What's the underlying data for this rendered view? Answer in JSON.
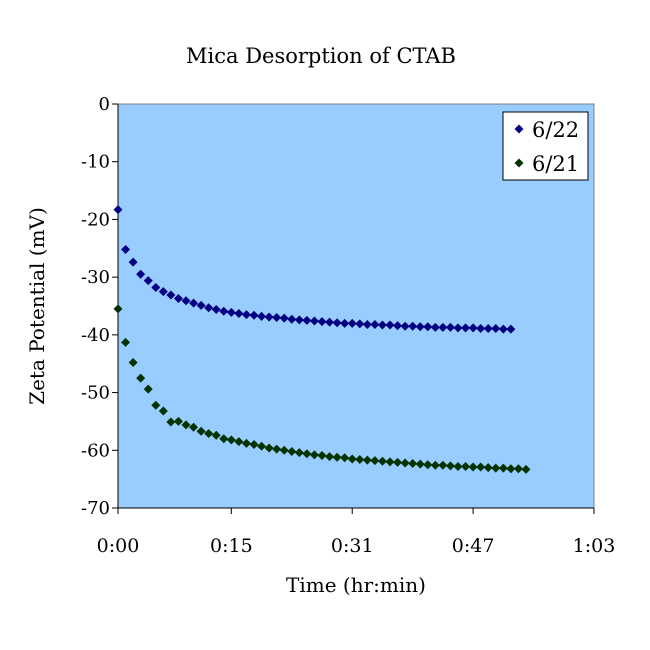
{
  "chart_data": {
    "type": "scatter",
    "title": "Mica Desorption of CTAB",
    "xlabel": "Time (hr:min)",
    "ylabel": "Zeta Potential (mV)",
    "xlim": [
      "0:00",
      "1:03"
    ],
    "ylim": [
      -70,
      0
    ],
    "x_ticks": [
      "0:00",
      "0:15",
      "0:31",
      "0:47",
      "1:03"
    ],
    "y_ticks": [
      "0",
      "-10",
      "-20",
      "-30",
      "-40",
      "-50",
      "-60",
      "-70"
    ],
    "legend_position": "top-right",
    "plot_background": "#99ccff",
    "series": [
      {
        "name": "6/22",
        "color": "#000080",
        "points": [
          [
            "0:00",
            -18.3
          ],
          [
            "0:01",
            -25.2
          ],
          [
            "0:02",
            -27.4
          ],
          [
            "0:03",
            -29.5
          ],
          [
            "0:04",
            -30.6
          ],
          [
            "0:05",
            -31.8
          ],
          [
            "0:06",
            -32.5
          ],
          [
            "0:07",
            -33.1
          ],
          [
            "0:08",
            -33.7
          ],
          [
            "0:09",
            -34.1
          ],
          [
            "0:10",
            -34.5
          ],
          [
            "0:11",
            -34.9
          ],
          [
            "0:12",
            -35.3
          ],
          [
            "0:13",
            -35.6
          ],
          [
            "0:14",
            -35.9
          ],
          [
            "0:15",
            -36.1
          ],
          [
            "0:16",
            -36.3
          ],
          [
            "0:17",
            -36.5
          ],
          [
            "0:18",
            -36.6
          ],
          [
            "0:19",
            -36.8
          ],
          [
            "0:20",
            -36.9
          ],
          [
            "0:21",
            -37.0
          ],
          [
            "0:22",
            -37.1
          ],
          [
            "0:23",
            -37.3
          ],
          [
            "0:24",
            -37.4
          ],
          [
            "0:25",
            -37.5
          ],
          [
            "0:26",
            -37.6
          ],
          [
            "0:27",
            -37.7
          ],
          [
            "0:28",
            -37.8
          ],
          [
            "0:29",
            -37.9
          ],
          [
            "0:30",
            -38.0
          ],
          [
            "0:31",
            -38.0
          ],
          [
            "0:32",
            -38.1
          ],
          [
            "0:33",
            -38.2
          ],
          [
            "0:34",
            -38.2
          ],
          [
            "0:35",
            -38.3
          ],
          [
            "0:36",
            -38.3
          ],
          [
            "0:37",
            -38.4
          ],
          [
            "0:38",
            -38.5
          ],
          [
            "0:39",
            -38.5
          ],
          [
            "0:40",
            -38.6
          ],
          [
            "0:41",
            -38.6
          ],
          [
            "0:42",
            -38.7
          ],
          [
            "0:43",
            -38.7
          ],
          [
            "0:44",
            -38.7
          ],
          [
            "0:45",
            -38.8
          ],
          [
            "0:46",
            -38.8
          ],
          [
            "0:47",
            -38.8
          ],
          [
            "0:48",
            -38.9
          ],
          [
            "0:49",
            -38.9
          ],
          [
            "0:50",
            -38.9
          ],
          [
            "0:51",
            -39.0
          ],
          [
            "0:52",
            -39.0
          ]
        ]
      },
      {
        "name": "6/21",
        "color": "#003300",
        "points": [
          [
            "0:00",
            -35.5
          ],
          [
            "0:01",
            -41.3
          ],
          [
            "0:02",
            -44.8
          ],
          [
            "0:03",
            -47.5
          ],
          [
            "0:04",
            -49.4
          ],
          [
            "0:05",
            -52.2
          ],
          [
            "0:06",
            -53.2
          ],
          [
            "0:07",
            -55.1
          ],
          [
            "0:08",
            -55.0
          ],
          [
            "0:09",
            -55.6
          ],
          [
            "0:10",
            -56.0
          ],
          [
            "0:11",
            -56.7
          ],
          [
            "0:12",
            -57.1
          ],
          [
            "0:13",
            -57.4
          ],
          [
            "0:14",
            -58.0
          ],
          [
            "0:15",
            -58.2
          ],
          [
            "0:16",
            -58.5
          ],
          [
            "0:17",
            -58.8
          ],
          [
            "0:18",
            -59.0
          ],
          [
            "0:19",
            -59.3
          ],
          [
            "0:20",
            -59.6
          ],
          [
            "0:21",
            -59.8
          ],
          [
            "0:22",
            -60.0
          ],
          [
            "0:23",
            -60.2
          ],
          [
            "0:24",
            -60.4
          ],
          [
            "0:25",
            -60.6
          ],
          [
            "0:26",
            -60.8
          ],
          [
            "0:27",
            -60.9
          ],
          [
            "0:28",
            -61.1
          ],
          [
            "0:29",
            -61.2
          ],
          [
            "0:30",
            -61.3
          ],
          [
            "0:31",
            -61.5
          ],
          [
            "0:32",
            -61.6
          ],
          [
            "0:33",
            -61.7
          ],
          [
            "0:34",
            -61.8
          ],
          [
            "0:35",
            -61.9
          ],
          [
            "0:36",
            -62.0
          ],
          [
            "0:37",
            -62.1
          ],
          [
            "0:38",
            -62.2
          ],
          [
            "0:39",
            -62.3
          ],
          [
            "0:40",
            -62.4
          ],
          [
            "0:41",
            -62.5
          ],
          [
            "0:42",
            -62.6
          ],
          [
            "0:43",
            -62.6
          ],
          [
            "0:44",
            -62.7
          ],
          [
            "0:45",
            -62.8
          ],
          [
            "0:46",
            -62.8
          ],
          [
            "0:47",
            -62.9
          ],
          [
            "0:48",
            -62.9
          ],
          [
            "0:49",
            -63.0
          ],
          [
            "0:50",
            -63.1
          ],
          [
            "0:51",
            -63.1
          ],
          [
            "0:52",
            -63.2
          ],
          [
            "0:53",
            -63.2
          ],
          [
            "0:54",
            -63.3
          ]
        ]
      }
    ]
  }
}
